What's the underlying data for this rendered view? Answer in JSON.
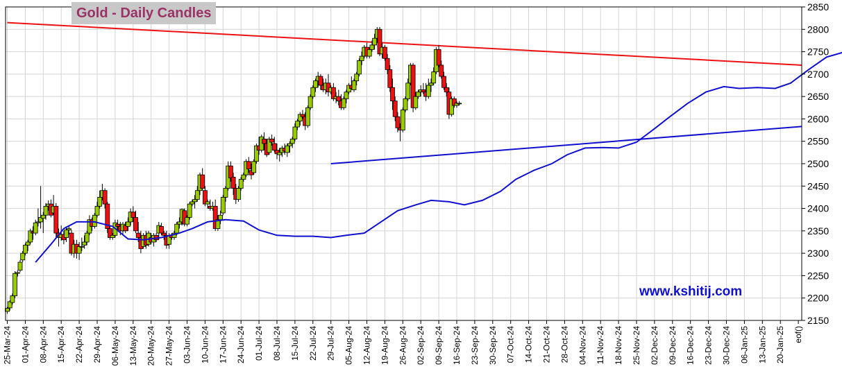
{
  "chart_data": {
    "type": "candlestick",
    "title": "Gold - Daily Candles",
    "watermark": "www.kshitij.com",
    "ylim": [
      2150,
      2850
    ],
    "yticks": [
      2150,
      2200,
      2250,
      2300,
      2350,
      2400,
      2450,
      2500,
      2550,
      2600,
      2650,
      2700,
      2750,
      2800,
      2850
    ],
    "y_axis_side": "right",
    "grid": true,
    "xtick_labels": [
      "25-Mar-24",
      "01-Apr-24",
      "08-Apr-24",
      "15-Apr-24",
      "22-Apr-24",
      "29-Apr-24",
      "06-May-24",
      "13-May-24",
      "20-May-24",
      "27-May-24",
      "03-Jun-24",
      "10-Jun-24",
      "17-Jun-24",
      "24-Jun-24",
      "01-Jul-24",
      "08-Jul-24",
      "15-Jul-24",
      "22-Jul-24",
      "29-Jul-24",
      "05-Aug-24",
      "12-Aug-24",
      "19-Aug-24",
      "26-Aug-24",
      "02-Sep-24",
      "09-Sep-24",
      "16-Sep-24",
      "23-Sep-24",
      "30-Sep-24",
      "07-Oct-24",
      "14-Oct-24",
      "21-Oct-24",
      "28-Oct-24",
      "04-Nov-24",
      "11-Nov-24",
      "18-Nov-24",
      "25-Nov-24",
      "02-Dec-24",
      "09-Dec-24",
      "16-Dec-24",
      "23-Dec-24",
      "30-Dec-24",
      "06-Jan-25",
      "13-Jan-25",
      "20-Jan-25"
    ],
    "end_label": "eof()",
    "colors": {
      "up": "#99cc00",
      "down": "#ee1111",
      "moving_average": "#1010d0",
      "resistance": "#ee1111",
      "support": "#1010d0",
      "grid": "#d4d4d4"
    },
    "candles": [
      [
        2170,
        2180,
        2165,
        2177
      ],
      [
        2178,
        2195,
        2172,
        2192
      ],
      [
        2190,
        2210,
        2185,
        2205
      ],
      [
        2205,
        2260,
        2200,
        2255
      ],
      [
        2255,
        2262,
        2248,
        2257
      ],
      [
        2262,
        2285,
        2258,
        2280
      ],
      [
        2285,
        2305,
        2280,
        2300
      ],
      [
        2300,
        2322,
        2295,
        2318
      ],
      [
        2318,
        2330,
        2305,
        2325
      ],
      [
        2325,
        2355,
        2320,
        2350
      ],
      [
        2348,
        2360,
        2330,
        2345
      ],
      [
        2345,
        2375,
        2340,
        2368
      ],
      [
        2368,
        2400,
        2360,
        2370
      ],
      [
        2370,
        2450,
        2355,
        2380
      ],
      [
        2378,
        2392,
        2345,
        2385
      ],
      [
        2385,
        2412,
        2375,
        2405
      ],
      [
        2405,
        2418,
        2395,
        2410
      ],
      [
        2410,
        2420,
        2380,
        2385
      ],
      [
        2390,
        2430,
        2385,
        2405
      ],
      [
        2405,
        2412,
        2335,
        2345
      ],
      [
        2345,
        2355,
        2315,
        2335
      ],
      [
        2335,
        2362,
        2328,
        2342
      ],
      [
        2342,
        2350,
        2320,
        2330
      ],
      [
        2335,
        2360,
        2325,
        2352
      ],
      [
        2352,
        2362,
        2342,
        2355
      ],
      [
        2345,
        2352,
        2295,
        2300
      ],
      [
        2300,
        2330,
        2290,
        2320
      ],
      [
        2320,
        2330,
        2288,
        2300
      ],
      [
        2300,
        2325,
        2285,
        2315
      ],
      [
        2315,
        2335,
        2305,
        2315
      ],
      [
        2318,
        2340,
        2310,
        2325
      ],
      [
        2325,
        2350,
        2318,
        2345
      ],
      [
        2345,
        2385,
        2340,
        2375
      ],
      [
        2375,
        2380,
        2350,
        2360
      ],
      [
        2360,
        2390,
        2355,
        2385
      ],
      [
        2385,
        2415,
        2380,
        2405
      ],
      [
        2405,
        2440,
        2400,
        2425
      ],
      [
        2425,
        2455,
        2418,
        2440
      ],
      [
        2440,
        2445,
        2400,
        2410
      ],
      [
        2410,
        2415,
        2345,
        2355
      ],
      [
        2355,
        2362,
        2330,
        2335
      ],
      [
        2335,
        2345,
        2330,
        2340
      ],
      [
        2340,
        2375,
        2335,
        2368
      ],
      [
        2365,
        2375,
        2350,
        2360
      ],
      [
        2360,
        2370,
        2340,
        2350
      ],
      [
        2350,
        2370,
        2340,
        2365
      ],
      [
        2362,
        2370,
        2345,
        2350
      ],
      [
        2360,
        2380,
        2350,
        2370
      ],
      [
        2370,
        2400,
        2362,
        2392
      ],
      [
        2392,
        2405,
        2370,
        2380
      ],
      [
        2380,
        2395,
        2345,
        2350
      ],
      [
        2345,
        2370,
        2325,
        2335
      ],
      [
        2335,
        2350,
        2300,
        2310
      ],
      [
        2315,
        2345,
        2310,
        2340
      ],
      [
        2340,
        2350,
        2310,
        2318
      ],
      [
        2320,
        2350,
        2315,
        2345
      ],
      [
        2335,
        2345,
        2320,
        2325
      ],
      [
        2325,
        2345,
        2315,
        2340
      ],
      [
        2340,
        2345,
        2325,
        2330
      ],
      [
        2345,
        2370,
        2330,
        2362
      ],
      [
        2360,
        2368,
        2340,
        2345
      ],
      [
        2345,
        2350,
        2330,
        2340
      ],
      [
        2340,
        2350,
        2310,
        2318
      ],
      [
        2320,
        2345,
        2310,
        2338
      ],
      [
        2340,
        2345,
        2330,
        2335
      ],
      [
        2335,
        2350,
        2330,
        2345
      ],
      [
        2345,
        2370,
        2340,
        2365
      ],
      [
        2365,
        2380,
        2355,
        2370
      ],
      [
        2370,
        2400,
        2362,
        2398
      ],
      [
        2395,
        2400,
        2360,
        2365
      ],
      [
        2365,
        2385,
        2360,
        2380
      ],
      [
        2380,
        2415,
        2375,
        2410
      ],
      [
        2410,
        2420,
        2405,
        2415
      ],
      [
        2415,
        2430,
        2400,
        2420
      ],
      [
        2420,
        2450,
        2415,
        2440
      ],
      [
        2440,
        2480,
        2430,
        2475
      ],
      [
        2475,
        2490,
        2440,
        2445
      ],
      [
        2440,
        2450,
        2405,
        2410
      ],
      [
        2410,
        2420,
        2400,
        2415
      ],
      [
        2405,
        2420,
        2395,
        2400
      ],
      [
        2400,
        2415,
        2395,
        2405
      ],
      [
        2405,
        2420,
        2350,
        2355
      ],
      [
        2355,
        2385,
        2350,
        2375
      ],
      [
        2375,
        2395,
        2365,
        2385
      ],
      [
        2390,
        2430,
        2385,
        2425
      ],
      [
        2425,
        2450,
        2415,
        2445
      ],
      [
        2445,
        2505,
        2440,
        2495
      ],
      [
        2495,
        2505,
        2460,
        2468
      ],
      [
        2470,
        2480,
        2430,
        2445
      ],
      [
        2445,
        2455,
        2410,
        2420
      ],
      [
        2420,
        2450,
        2415,
        2445
      ],
      [
        2445,
        2470,
        2440,
        2465
      ],
      [
        2465,
        2480,
        2460,
        2475
      ],
      [
        2475,
        2510,
        2470,
        2505
      ],
      [
        2505,
        2515,
        2480,
        2488
      ],
      [
        2485,
        2500,
        2465,
        2475
      ],
      [
        2480,
        2510,
        2475,
        2505
      ],
      [
        2505,
        2545,
        2500,
        2540
      ],
      [
        2540,
        2560,
        2520,
        2530
      ],
      [
        2530,
        2565,
        2525,
        2560
      ],
      [
        2555,
        2570,
        2530,
        2545
      ],
      [
        2545,
        2555,
        2515,
        2520
      ],
      [
        2525,
        2560,
        2520,
        2555
      ],
      [
        2555,
        2565,
        2540,
        2548
      ],
      [
        2545,
        2560,
        2525,
        2530
      ],
      [
        2530,
        2545,
        2510,
        2522
      ],
      [
        2520,
        2535,
        2505,
        2525
      ],
      [
        2525,
        2540,
        2515,
        2535
      ],
      [
        2535,
        2545,
        2520,
        2528
      ],
      [
        2525,
        2545,
        2515,
        2540
      ],
      [
        2540,
        2550,
        2525,
        2545
      ],
      [
        2545,
        2560,
        2535,
        2555
      ],
      [
        2555,
        2590,
        2550,
        2582
      ],
      [
        2582,
        2600,
        2575,
        2595
      ],
      [
        2595,
        2615,
        2585,
        2610
      ],
      [
        2610,
        2620,
        2600,
        2605
      ],
      [
        2605,
        2615,
        2575,
        2585
      ],
      [
        2585,
        2630,
        2580,
        2625
      ],
      [
        2625,
        2655,
        2620,
        2650
      ],
      [
        2650,
        2675,
        2645,
        2670
      ],
      [
        2670,
        2690,
        2660,
        2685
      ],
      [
        2685,
        2705,
        2670,
        2695
      ],
      [
        2695,
        2700,
        2665,
        2675
      ],
      [
        2675,
        2690,
        2660,
        2665
      ],
      [
        2665,
        2690,
        2655,
        2680
      ],
      [
        2680,
        2700,
        2650,
        2660
      ],
      [
        2660,
        2675,
        2655,
        2670
      ],
      [
        2670,
        2680,
        2640,
        2645
      ],
      [
        2645,
        2660,
        2635,
        2650
      ],
      [
        2650,
        2665,
        2630,
        2640
      ],
      [
        2640,
        2655,
        2620,
        2625
      ],
      [
        2625,
        2650,
        2620,
        2645
      ],
      [
        2645,
        2665,
        2635,
        2660
      ],
      [
        2660,
        2680,
        2655,
        2675
      ],
      [
        2675,
        2695,
        2665,
        2668
      ],
      [
        2665,
        2690,
        2660,
        2685
      ],
      [
        2685,
        2705,
        2675,
        2700
      ],
      [
        2700,
        2735,
        2695,
        2730
      ],
      [
        2730,
        2750,
        2720,
        2740
      ],
      [
        2740,
        2765,
        2735,
        2760
      ],
      [
        2760,
        2770,
        2735,
        2740
      ],
      [
        2740,
        2760,
        2735,
        2755
      ],
      [
        2755,
        2775,
        2750,
        2765
      ],
      [
        2765,
        2790,
        2755,
        2780
      ],
      [
        2780,
        2805,
        2770,
        2800
      ],
      [
        2800,
        2805,
        2740,
        2745
      ],
      [
        2745,
        2770,
        2735,
        2760
      ],
      [
        2760,
        2765,
        2730,
        2735
      ],
      [
        2735,
        2745,
        2700,
        2710
      ],
      [
        2710,
        2720,
        2660,
        2670
      ],
      [
        2670,
        2690,
        2620,
        2640
      ],
      [
        2640,
        2650,
        2595,
        2605
      ],
      [
        2605,
        2615,
        2570,
        2580
      ],
      [
        2580,
        2590,
        2550,
        2575
      ],
      [
        2575,
        2625,
        2570,
        2620
      ],
      [
        2620,
        2650,
        2615,
        2645
      ],
      [
        2645,
        2690,
        2640,
        2680
      ],
      [
        2680,
        2725,
        2675,
        2720
      ],
      [
        2720,
        2725,
        2615,
        2625
      ],
      [
        2625,
        2660,
        2620,
        2650
      ],
      [
        2650,
        2665,
        2645,
        2660
      ],
      [
        2660,
        2675,
        2650,
        2665
      ],
      [
        2665,
        2680,
        2655,
        2660
      ],
      [
        2660,
        2680,
        2640,
        2650
      ],
      [
        2650,
        2690,
        2645,
        2675
      ],
      [
        2675,
        2690,
        2660,
        2680
      ],
      [
        2680,
        2715,
        2675,
        2705
      ],
      [
        2705,
        2760,
        2700,
        2755
      ],
      [
        2755,
        2765,
        2715,
        2720
      ],
      [
        2720,
        2730,
        2690,
        2695
      ],
      [
        2695,
        2705,
        2665,
        2670
      ],
      [
        2670,
        2680,
        2650,
        2660
      ],
      [
        2660,
        2670,
        2600,
        2610
      ],
      [
        2610,
        2650,
        2605,
        2645
      ],
      [
        2645,
        2650,
        2625,
        2630
      ],
      [
        2630,
        2640,
        2625,
        2635
      ],
      [
        2635,
        2640,
        2630,
        2635
      ]
    ],
    "moving_average": [
      [
        11,
        2280
      ],
      [
        17,
        2320
      ],
      [
        22,
        2355
      ],
      [
        27,
        2370
      ],
      [
        34,
        2370
      ],
      [
        41,
        2360
      ],
      [
        47,
        2332
      ],
      [
        53,
        2330
      ],
      [
        60,
        2335
      ],
      [
        67,
        2345
      ],
      [
        72,
        2355
      ],
      [
        78,
        2370
      ],
      [
        85,
        2375
      ],
      [
        92,
        2372
      ],
      [
        98,
        2352
      ],
      [
        105,
        2340
      ],
      [
        112,
        2338
      ],
      [
        119,
        2338
      ],
      [
        126,
        2335
      ],
      [
        132,
        2340
      ],
      [
        139,
        2345
      ],
      [
        145,
        2368
      ],
      [
        152,
        2395
      ],
      [
        159,
        2408
      ],
      [
        165,
        2418
      ],
      [
        172,
        2415
      ],
      [
        178,
        2408
      ],
      [
        185,
        2418
      ],
      [
        192,
        2438
      ],
      [
        198,
        2465
      ],
      [
        205,
        2485
      ],
      [
        212,
        2500
      ],
      [
        218,
        2520
      ],
      [
        225,
        2535
      ],
      [
        232,
        2536
      ],
      [
        238,
        2535
      ],
      [
        245,
        2548
      ],
      [
        252,
        2578
      ],
      [
        258,
        2605
      ],
      [
        265,
        2635
      ],
      [
        272,
        2660
      ],
      [
        279,
        2672
      ],
      [
        285,
        2668
      ],
      [
        292,
        2670
      ],
      [
        299,
        2668
      ],
      [
        305,
        2680
      ],
      [
        312,
        2710
      ],
      [
        319,
        2738
      ],
      [
        325,
        2748
      ],
      [
        332,
        2740
      ],
      [
        339,
        2700
      ],
      [
        345,
        2660
      ],
      [
        352,
        2630
      ],
      [
        359,
        2640
      ],
      [
        365,
        2658
      ],
      [
        372,
        2662
      ],
      [
        379,
        2662
      ],
      [
        385,
        2672
      ],
      [
        392,
        2682
      ],
      [
        399,
        2678
      ],
      [
        405,
        2665
      ],
      [
        412,
        2645
      ],
      [
        418,
        2632
      ],
      [
        425,
        2632
      ],
      [
        432,
        2635
      ],
      [
        438,
        2635
      ]
    ],
    "resistance": {
      "from": [
        0,
        2815
      ],
      "to": [
        560,
        2720
      ]
    },
    "support": {
      "from": [
        126,
        2500
      ],
      "to": [
        560,
        2583
      ]
    }
  }
}
